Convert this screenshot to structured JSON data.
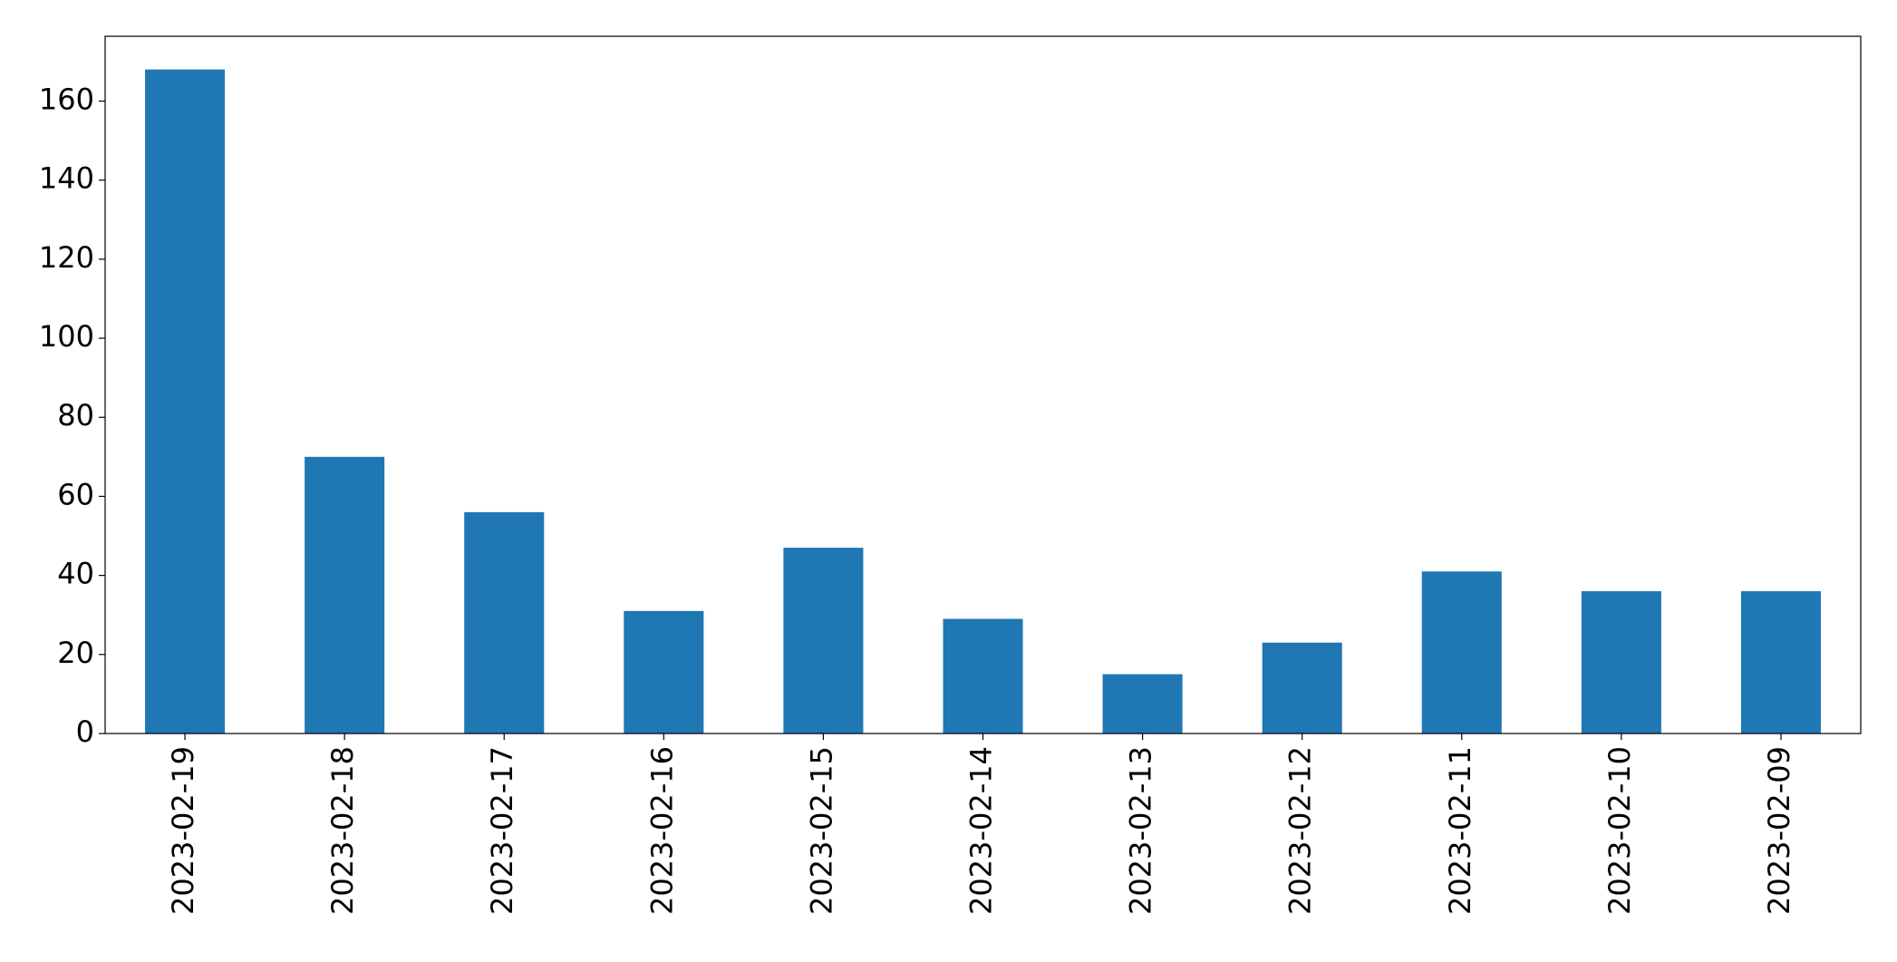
{
  "chart_data": {
    "type": "bar",
    "categories": [
      "2023-02-19",
      "2023-02-18",
      "2023-02-17",
      "2023-02-16",
      "2023-02-15",
      "2023-02-14",
      "2023-02-13",
      "2023-02-12",
      "2023-02-11",
      "2023-02-10",
      "2023-02-09"
    ],
    "values": [
      168,
      70,
      56,
      31,
      47,
      29,
      15,
      23,
      41,
      36,
      36
    ],
    "color": "#1f77b4",
    "ylim": [
      0,
      176.4
    ],
    "yticks": [
      0,
      20,
      40,
      60,
      80,
      100,
      120,
      140,
      160
    ],
    "grid": false
  }
}
